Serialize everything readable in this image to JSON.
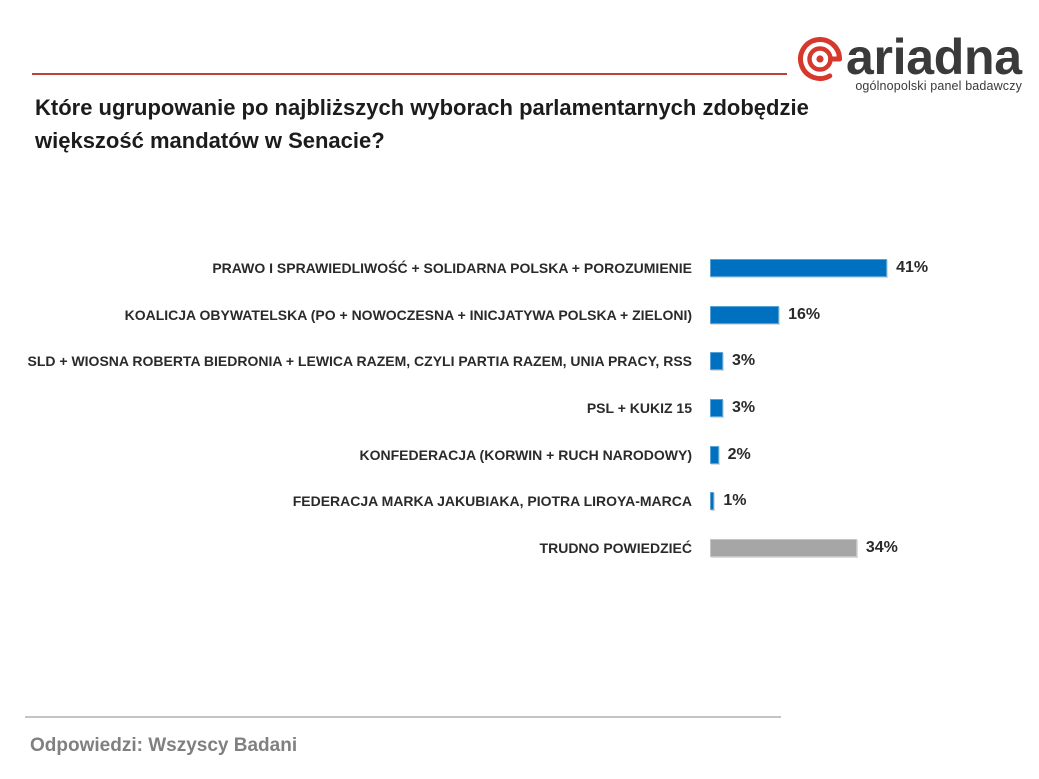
{
  "colors": {
    "header_rule": "#b8433b",
    "logo_red": "#d6392b",
    "footer_rule": "#c4c4c4"
  },
  "header": {
    "logo_icon": "spiral-icon",
    "logo_text": "ariadna",
    "logo_tagline": "ogólnopolski panel badawczy"
  },
  "chart_data": {
    "type": "bar",
    "orientation": "horizontal",
    "title": "Które ugrupowanie po najbliższych wyborach parlamentarnych zdobędzie większość mandatów w Senacie?",
    "xlabel": "",
    "ylabel": "",
    "grid": false,
    "categories": [
      "PRAWO I SPRAWIEDLIWOŚĆ + SOLIDARNA POLSKA + POROZUMIENIE",
      "KOALICJA OBYWATELSKA (PO + NOWOCZESNA + INICJATYWA POLSKA + ZIELONI)",
      "SLD + WIOSNA ROBERTA BIEDRONIA + LEWICA RAZEM, CZYLI PARTIA RAZEM, UNIA PRACY, RSS",
      "PSL + KUKIZ 15",
      "KONFEDERACJA (KORWIN + RUCH NARODOWY)",
      "FEDERACJA MARKA JAKUBIAKA, PIOTRA LIROYA-MARCA",
      "TRUDNO POWIEDZIEĆ"
    ],
    "values": [
      41,
      16,
      3,
      3,
      2,
      1,
      34
    ],
    "data_labels": [
      "41%",
      "16%",
      "3%",
      "3%",
      "2%",
      "1%",
      "34%"
    ],
    "colors": [
      "#0070C0",
      "#0070C0",
      "#0070C0",
      "#0070C0",
      "#0070C0",
      "#0070C0",
      "#A6A6A6"
    ]
  },
  "footer": {
    "note": "Odpowiedzi: Wszyscy Badani"
  }
}
